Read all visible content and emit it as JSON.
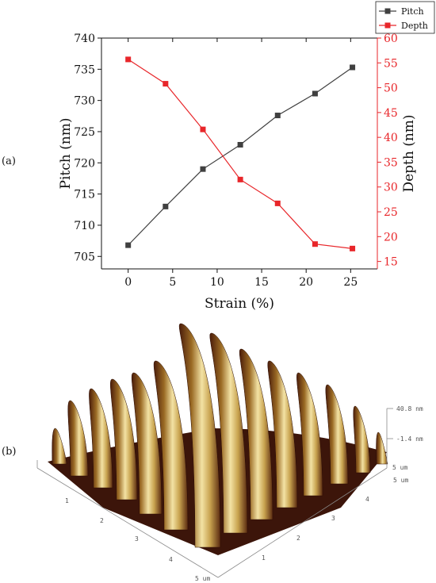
{
  "panels": {
    "a_label": "(a)",
    "b_label": "(b)"
  },
  "chart_data": {
    "type": "line",
    "x": [
      0,
      4.2,
      8.4,
      12.6,
      16.8,
      21,
      25.2
    ],
    "xlabel": "Strain (%)",
    "xlim": [
      -3,
      28
    ],
    "xticks": [
      0,
      5,
      10,
      15,
      20,
      25
    ],
    "left_axis": {
      "label": "Pitch (nm)",
      "ylim": [
        703,
        740
      ],
      "ticks": [
        705,
        710,
        715,
        720,
        725,
        730,
        735,
        740
      ],
      "color": "#111111"
    },
    "right_axis": {
      "label": "Depth (nm)",
      "ylim": [
        13.5,
        60
      ],
      "ticks": [
        15,
        20,
        25,
        30,
        35,
        40,
        45,
        50,
        55,
        60
      ],
      "color": "#e8262a"
    },
    "series": [
      {
        "name": "Pitch",
        "axis": "left",
        "color": "#404040",
        "marker": "square",
        "values": [
          706.8,
          713.0,
          719.0,
          722.9,
          727.6,
          731.1,
          735.3
        ]
      },
      {
        "name": "Depth",
        "axis": "right",
        "color": "#e8262a",
        "marker": "square",
        "values": [
          55.7,
          50.8,
          41.6,
          31.5,
          26.7,
          18.5,
          17.6
        ]
      }
    ],
    "legend": {
      "position": "top-right"
    }
  },
  "afm": {
    "z_top": "40.8 nm",
    "z_mid": "-1.4 nm",
    "axis_end_x": "5 um",
    "axis_end_y": "5 um",
    "axis_end_front": "5 um",
    "left_ticks": [
      "1",
      "2",
      "3",
      "4"
    ],
    "right_ticks": [
      "1",
      "2",
      "3",
      "4"
    ],
    "colors": {
      "dark": "#3a1408",
      "mid": "#8a5a1c",
      "light": "#e6cf82",
      "highlight": "#fbf3d2"
    }
  }
}
